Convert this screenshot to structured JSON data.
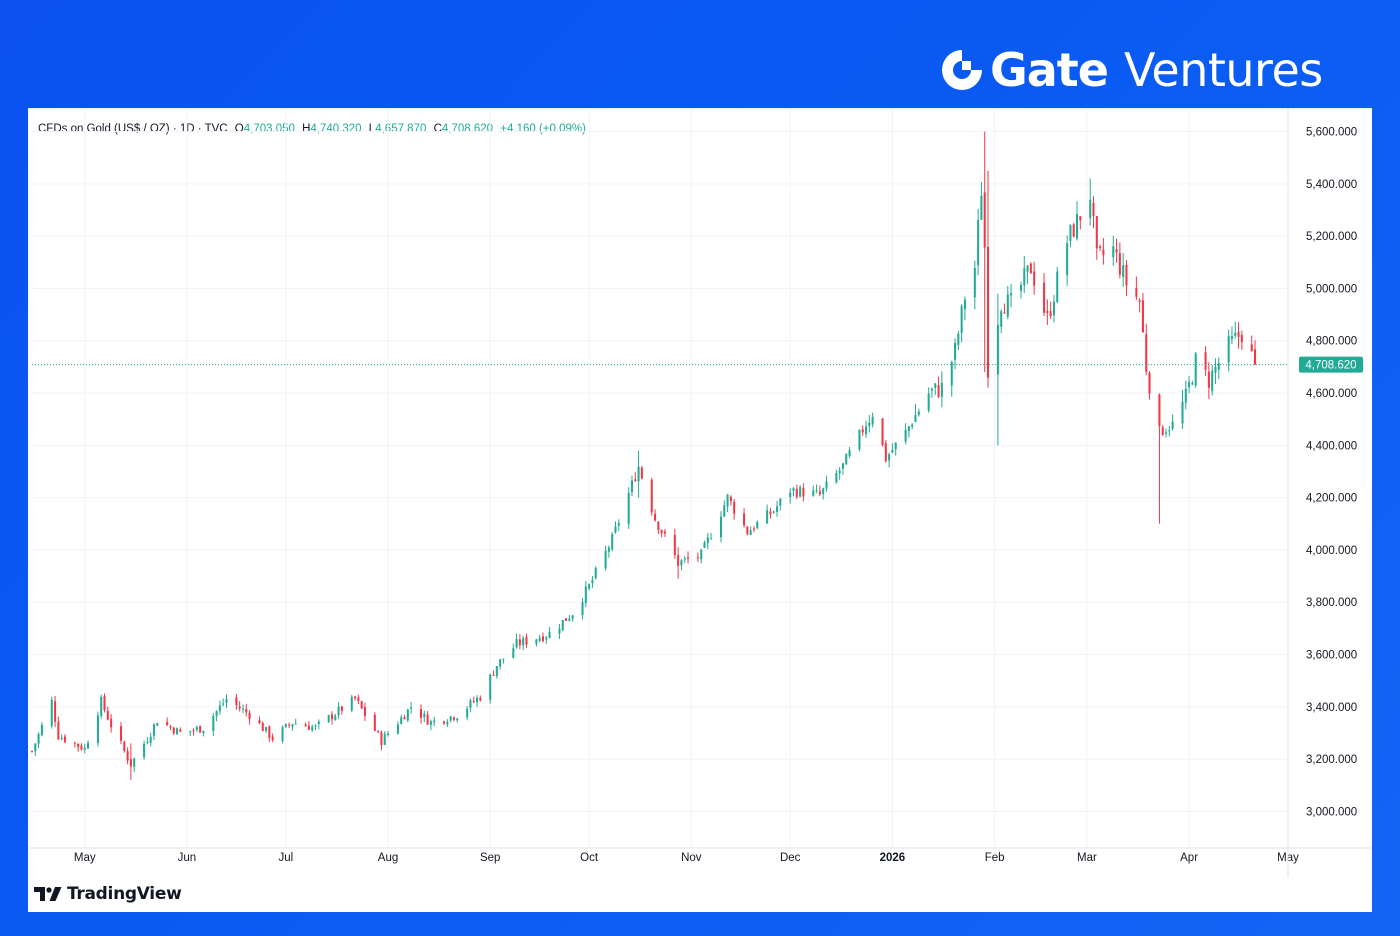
{
  "brand": {
    "name": "Gate",
    "sub": "Ventures"
  },
  "legend": {
    "symbol": "CFDs on Gold (US$ / OZ) · 1D · TVC",
    "o_label": "O",
    "o_value": "4,703.050",
    "h_label": "H",
    "h_value": "4,740.320",
    "l_label": "L",
    "l_value": "4,657.870",
    "c_label": "C",
    "c_value": "4,708.620",
    "change": "+4.160 (+0.09%)"
  },
  "watermark": "TradingView",
  "colors": {
    "up": "#22ab94",
    "down": "#f23645",
    "grid": "#f0f3fa",
    "axis_text": "#131722",
    "brand_bg": "#0b52f0"
  },
  "chart_data": {
    "type": "candlestick",
    "title": "CFDs on Gold (US$ / OZ) · 1D · TVC",
    "xlabel": "",
    "ylabel": "",
    "ylim": [
      2860,
      5690
    ],
    "xlim": [
      "2025-04-15",
      "2026-05-01"
    ],
    "grid": true,
    "last_price": 4708.62,
    "last_price_label": "4,708.620",
    "y_ticks": [
      3000,
      3200,
      3400,
      3600,
      3800,
      4000,
      4200,
      4400,
      4600,
      4800,
      5000,
      5200,
      5400,
      5600
    ],
    "y_tick_labels": [
      "3,000.000",
      "3,200.000",
      "3,400.000",
      "3,600.000",
      "3,800.000",
      "4,000.000",
      "4,200.000",
      "4,400.000",
      "4,600.000",
      "4,800.000",
      "5,000.000",
      "5,200.000",
      "5,400.000",
      "5,600.000"
    ],
    "x_ticks": [
      {
        "date": "2025-05-01",
        "label": "May",
        "bold": false
      },
      {
        "date": "2025-06-01",
        "label": "Jun",
        "bold": false
      },
      {
        "date": "2025-07-01",
        "label": "Jul",
        "bold": false
      },
      {
        "date": "2025-08-01",
        "label": "Aug",
        "bold": false
      },
      {
        "date": "2025-09-01",
        "label": "Sep",
        "bold": false
      },
      {
        "date": "2025-10-01",
        "label": "Oct",
        "bold": false
      },
      {
        "date": "2025-11-01",
        "label": "Nov",
        "bold": false
      },
      {
        "date": "2025-12-01",
        "label": "Dec",
        "bold": false
      },
      {
        "date": "2026-01-01",
        "label": "2026",
        "bold": true
      },
      {
        "date": "2026-02-01",
        "label": "Feb",
        "bold": false
      },
      {
        "date": "2026-03-01",
        "label": "Mar",
        "bold": false
      },
      {
        "date": "2026-04-01",
        "label": "Apr",
        "bold": false
      },
      {
        "date": "2026-05-01",
        "label": "May",
        "bold": false
      }
    ],
    "close_path": [
      [
        "2025-04-15",
        3230
      ],
      [
        "2025-04-21",
        3420
      ],
      [
        "2025-04-23",
        3290
      ],
      [
        "2025-05-01",
        3240
      ],
      [
        "2025-05-06",
        3420
      ],
      [
        "2025-05-09",
        3330
      ],
      [
        "2025-05-15",
        3180
      ],
      [
        "2025-05-20",
        3280
      ],
      [
        "2025-05-23",
        3350
      ],
      [
        "2025-05-30",
        3300
      ],
      [
        "2025-06-06",
        3320
      ],
      [
        "2025-06-13",
        3430
      ],
      [
        "2025-06-20",
        3370
      ],
      [
        "2025-06-27",
        3280
      ],
      [
        "2025-07-03",
        3340
      ],
      [
        "2025-07-10",
        3320
      ],
      [
        "2025-07-22",
        3430
      ],
      [
        "2025-07-30",
        3270
      ],
      [
        "2025-08-08",
        3400
      ],
      [
        "2025-08-14",
        3340
      ],
      [
        "2025-08-22",
        3370
      ],
      [
        "2025-08-29",
        3440
      ],
      [
        "2025-09-03",
        3560
      ],
      [
        "2025-09-09",
        3640
      ],
      [
        "2025-09-19",
        3680
      ],
      [
        "2025-09-26",
        3760
      ],
      [
        "2025-10-01",
        3860
      ],
      [
        "2025-10-08",
        4040
      ],
      [
        "2025-10-16",
        4320
      ],
      [
        "2025-10-21",
        4120
      ],
      [
        "2025-10-28",
        3950
      ],
      [
        "2025-11-04",
        3980
      ],
      [
        "2025-11-12",
        4200
      ],
      [
        "2025-11-18",
        4070
      ],
      [
        "2025-11-26",
        4150
      ],
      [
        "2025-12-01",
        4230
      ],
      [
        "2025-12-10",
        4210
      ],
      [
        "2025-12-17",
        4320
      ],
      [
        "2025-12-26",
        4530
      ],
      [
        "2025-12-30",
        4350
      ],
      [
        "2026-01-05",
        4450
      ],
      [
        "2026-01-12",
        4600
      ],
      [
        "2026-01-16",
        4620
      ],
      [
        "2026-01-20",
        4760
      ],
      [
        "2026-01-23",
        4970
      ],
      [
        "2026-01-26",
        5080
      ],
      [
        "2026-01-28",
        5380
      ],
      [
        "2026-01-29",
        5160
      ],
      [
        "2026-01-30",
        4700
      ],
      [
        "2026-02-03",
        4950
      ],
      [
        "2026-02-06",
        4940
      ],
      [
        "2026-02-12",
        5080
      ],
      [
        "2026-02-17",
        4880
      ],
      [
        "2026-02-23",
        5180
      ],
      [
        "2026-02-27",
        5280
      ],
      [
        "2026-03-02",
        5360
      ],
      [
        "2026-03-04",
        5110
      ],
      [
        "2026-03-09",
        5150
      ],
      [
        "2026-03-13",
        5020
      ],
      [
        "2026-03-17",
        4950
      ],
      [
        "2026-03-19",
        4700
      ],
      [
        "2026-03-23",
        4450
      ],
      [
        "2026-03-27",
        4480
      ],
      [
        "2026-03-31",
        4580
      ],
      [
        "2026-04-03",
        4720
      ],
      [
        "2026-04-07",
        4650
      ],
      [
        "2026-04-13",
        4780
      ],
      [
        "2026-04-17",
        4830
      ],
      [
        "2026-04-21",
        4708.62
      ]
    ],
    "wick_spikes": [
      {
        "date": "2026-01-29",
        "high": 5600,
        "low": 4680
      },
      {
        "date": "2026-01-30",
        "high": 5450,
        "low": 4620
      },
      {
        "date": "2026-02-02",
        "high": 4980,
        "low": 4400
      },
      {
        "date": "2026-03-23",
        "high": 4500,
        "low": 4100
      },
      {
        "date": "2026-03-02",
        "high": 5420,
        "low": 5250
      },
      {
        "date": "2025-05-15",
        "high": 3260,
        "low": 3120
      },
      {
        "date": "2025-10-16",
        "high": 4380,
        "low": 4200
      },
      {
        "date": "2025-10-28",
        "high": 4010,
        "low": 3890
      }
    ]
  }
}
